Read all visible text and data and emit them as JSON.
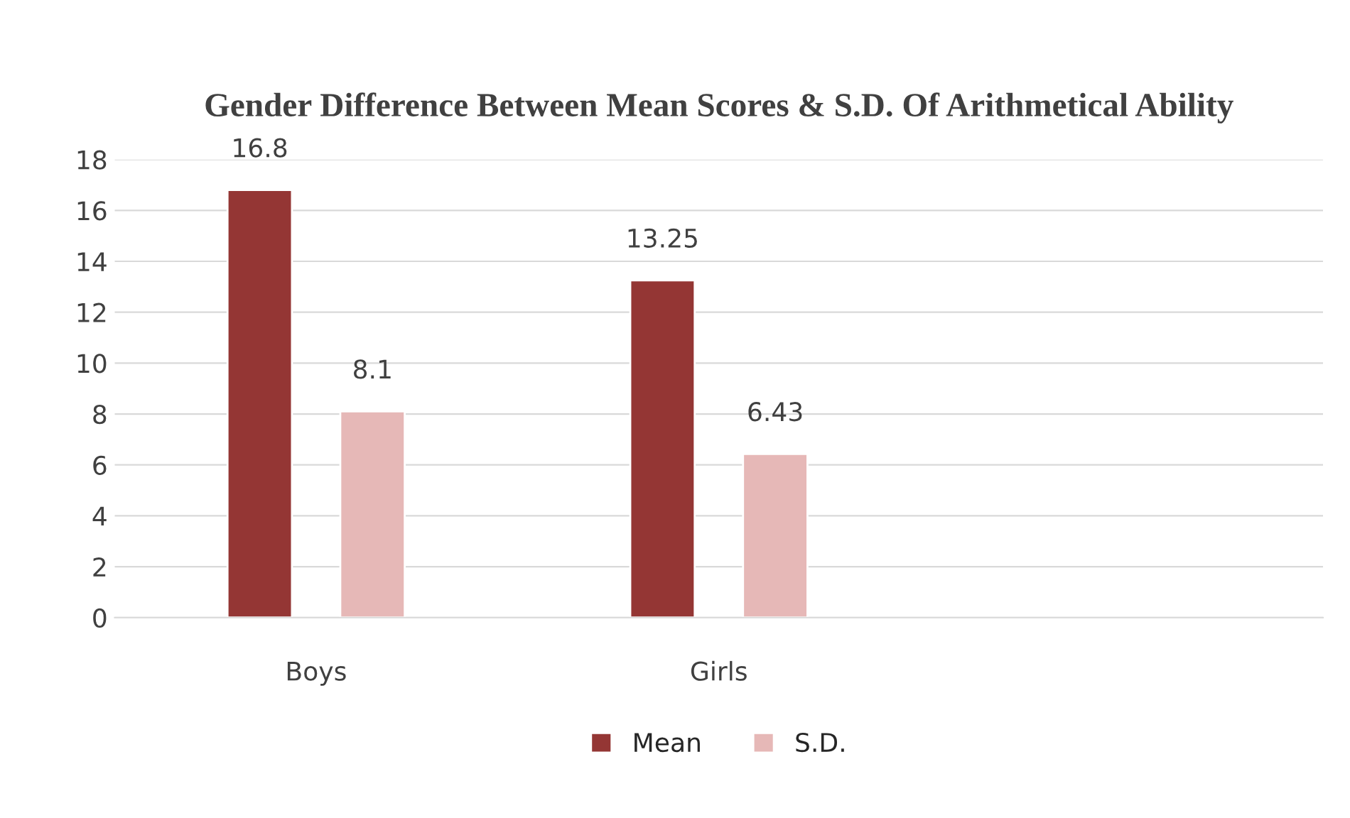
{
  "chart_data": {
    "type": "bar",
    "title": "Gender Difference Between Mean Scores & S.D. Of Arithmetical Ability",
    "categories": [
      "Boys",
      "Girls",
      null
    ],
    "series": [
      {
        "name": "Mean",
        "color": "#943634",
        "values": [
          16.8,
          13.25,
          null
        ]
      },
      {
        "name": "S.D.",
        "color": "#e6b8b7",
        "values": [
          8.1,
          6.43,
          null
        ]
      }
    ],
    "ylim": [
      0,
      18
    ],
    "yticks": [
      0,
      2,
      4,
      6,
      8,
      10,
      12,
      14,
      16,
      18
    ],
    "grid": "y",
    "legend": "bottom",
    "data_labels": true
  }
}
